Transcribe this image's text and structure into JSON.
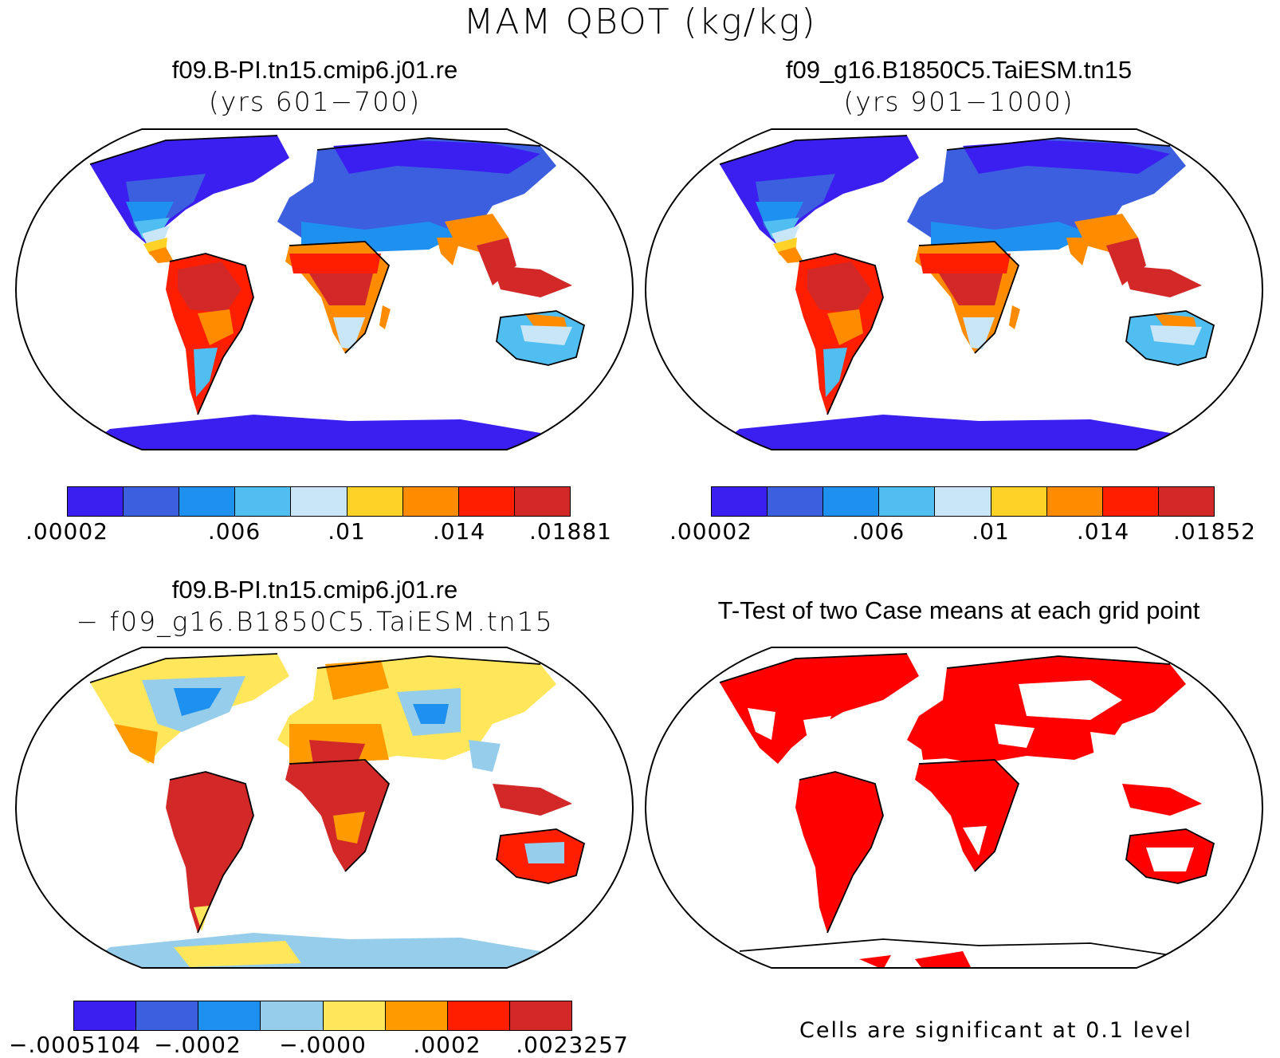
{
  "main_title": "MAM QBOT (kg/kg)",
  "panels": [
    {
      "title1": "f09.B-PI.tn15.cmip6.j01.re",
      "title2": "(yrs 601−700)"
    },
    {
      "title1": "f09_g16.B1850C5.TaiESM.tn15",
      "title2": "(yrs 901−1000)"
    },
    {
      "title1": "f09.B-PI.tn15.cmip6.j01.re",
      "title2": "− f09_g16.B1850C5.TaiESM.tn15"
    },
    {
      "title1": "T-Test of two Case means at each grid point"
    }
  ],
  "colorbars": [
    {
      "colors": [
        "#3a1ff0",
        "#3c5fe0",
        "#1e90f0",
        "#50bef0",
        "#c8e6f8",
        "#ffd228",
        "#ff8c00",
        "#ff1e00",
        "#d22828"
      ],
      "labels": [
        ".00002",
        ".006",
        ".01",
        ".014",
        ".01881"
      ]
    },
    {
      "colors": [
        "#3a1ff0",
        "#3c5fe0",
        "#1e90f0",
        "#50bef0",
        "#c8e6f8",
        "#ffd228",
        "#ff8c00",
        "#ff1e00",
        "#d22828"
      ],
      "labels": [
        ".00002",
        ".006",
        ".01",
        ".014",
        ".01852"
      ]
    },
    {
      "colors": [
        "#3a1ff0",
        "#3c5fe0",
        "#1e90f0",
        "#96cdeb",
        "#ffe65a",
        "#ff9b00",
        "#ff1e00",
        "#d22828"
      ],
      "labels": [
        "−.0005104",
        "−.0002",
        "−.0000",
        ".0002",
        ".0023257"
      ]
    }
  ],
  "ttest_note": "Cells are significant at 0.1 level"
}
